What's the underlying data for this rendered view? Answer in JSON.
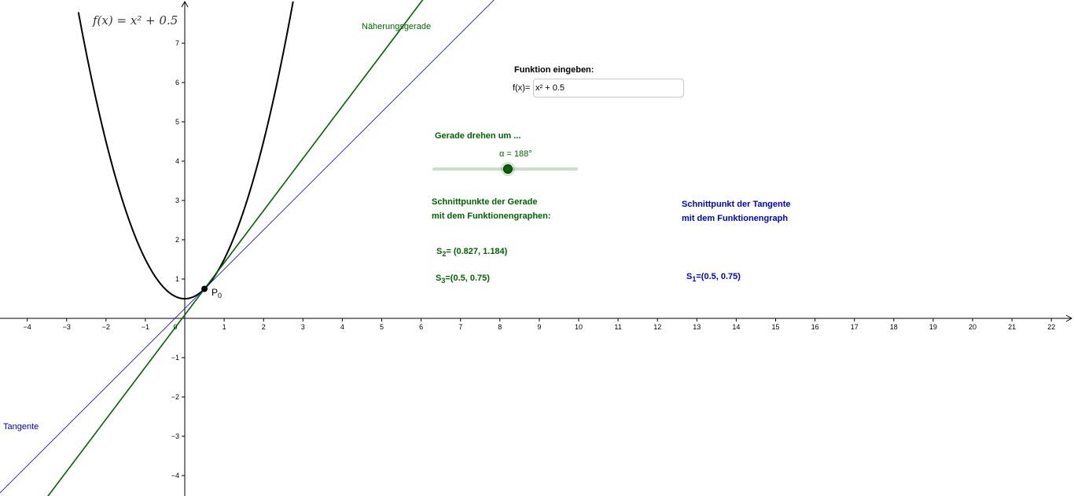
{
  "graph": {
    "function_label": "f(x) = x² + 0.5",
    "x_ticks": [
      "−4",
      "−3",
      "−2",
      "−1",
      "0",
      "1",
      "2",
      "3",
      "4",
      "5",
      "6",
      "7",
      "8",
      "9",
      "10",
      "11",
      "12",
      "13",
      "14",
      "15",
      "16",
      "17",
      "18",
      "19",
      "20",
      "21",
      "22"
    ],
    "y_ticks": [
      "7",
      "6",
      "5",
      "4",
      "3",
      "2",
      "1",
      "−1",
      "−2",
      "−3",
      "−4"
    ],
    "curve_color": "#000000",
    "secant_color": "#006400",
    "tangent_color": "#0000cc",
    "secant_label": "Näherungsgerade",
    "tangent_label": "Tangente",
    "point_label": "P",
    "point_sub": "0"
  },
  "input": {
    "heading": "Funktion eingeben:",
    "prefix": "f(x)=",
    "value": "x² + 0.5"
  },
  "slider": {
    "heading": "Gerade drehen um ...",
    "value_label": "α = 188°",
    "color": "#006400"
  },
  "secant_info": {
    "heading_line1": "Schnittpunkte der Gerade",
    "heading_line2": "mit dem Funktionengraphen:",
    "s2_name": "S",
    "s2_sub": "2",
    "s2_value": "= (0.827, 1.184)",
    "s3_name": "S",
    "s3_sub": "3",
    "s3_value": "=(0.5, 0.75)"
  },
  "tangent_info": {
    "heading_line1": "Schnittpunkt der Tangente",
    "heading_line2": "mit dem Funktionengraph",
    "s1_name": "S",
    "s1_sub": "1",
    "s1_value": "=(0.5, 0.75)"
  }
}
